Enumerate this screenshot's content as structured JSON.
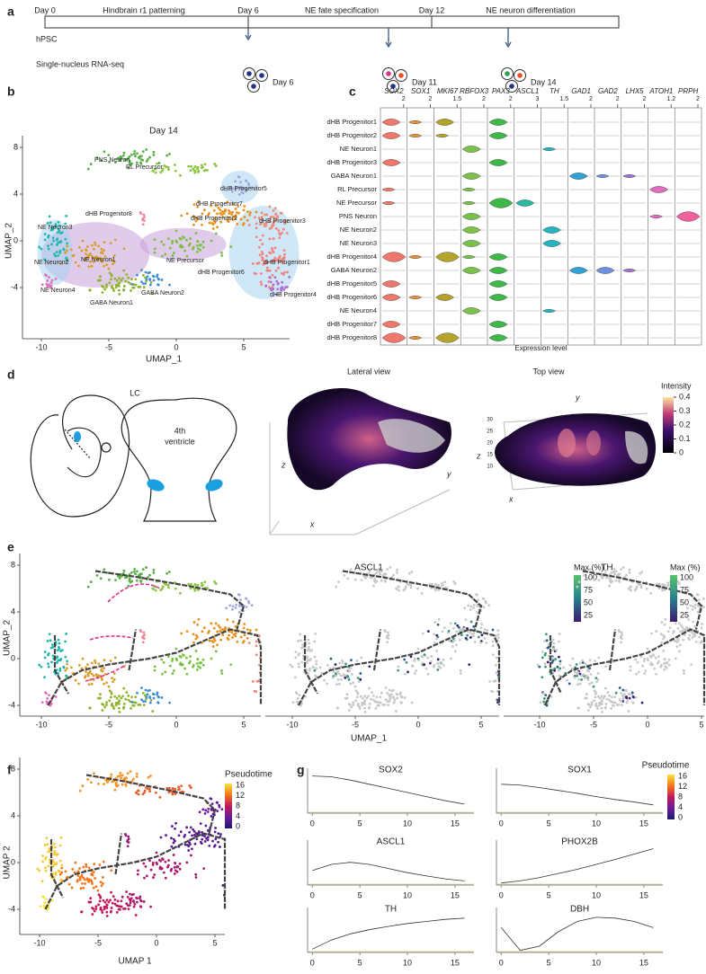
{
  "a": {
    "label": "a",
    "days": [
      "Day 0",
      "Day 6",
      "Day 12"
    ],
    "stages": [
      "Hindbrain r1 patterning",
      "NE fate specification",
      "NE neuron differentiation"
    ],
    "rows": [
      "hPSC",
      "Single-nucleus RNA-seq"
    ],
    "samples": [
      "Day 6",
      "Day 11",
      "Day 14"
    ]
  },
  "b": {
    "label": "b",
    "title": "Day 14",
    "xlabel": "UMAP_1",
    "ylabel": "UMAP_2",
    "xticks": [
      -10,
      -5,
      0,
      5
    ],
    "yticks": [
      8,
      4,
      0,
      -4
    ],
    "clusters": [
      "PNS Neuron",
      "RL Precursor",
      "dHB Progenitor5",
      "dHB Progenitor8",
      "dHB Progenitor7",
      "dHB Progenitor2",
      "dHB Progenitor3",
      "NE Neuron3",
      "NE Neuron1",
      "NE Neuron2",
      "NE Precursor",
      "dHB Progenitor1",
      "dHB Progenitor6",
      "NE Neuron4",
      "GABA Neuron2",
      "GABA Neuron1",
      "dHB Progenitor4"
    ]
  },
  "c": {
    "label": "c",
    "genes": [
      "SOX2",
      "SOX1",
      "MKI67",
      "RBFOX3",
      "PAX3",
      "ASCL1",
      "TH",
      "GAD1",
      "GAD2",
      "LHX5",
      "ATOH1",
      "PRPH"
    ],
    "max_labels": [
      "2",
      "2",
      "1.5",
      "2",
      "2",
      "3",
      "1.5",
      "2",
      "2",
      "2",
      "1.2",
      "2"
    ],
    "colors": [
      "#f0776c",
      "#e8913a",
      "#b5a42a",
      "#7cc24a",
      "#3fb84a",
      "#2bb7a0",
      "#25b3c0",
      "#2fa3d8",
      "#6f8fe0",
      "#a56fd8",
      "#e06bc0",
      "#f0609a"
    ],
    "cell_types": [
      "dHB Progenitor1",
      "dHB Progenitor2",
      "NE Neuron1",
      "dHB Progenitor3",
      "GABA Neuron1",
      "RL Precursor",
      "NE Precursor",
      "PNS Neuron",
      "NE Neuron2",
      "NE Neuron3",
      "dHB Progenitor4",
      "GABA Neuron2",
      "dHB Progenitor5",
      "dHB Progenitor6",
      "NE Neuron4",
      "dHB Progenitor7",
      "dHB Progenitor8"
    ],
    "expression": [
      [
        2,
        1,
        2,
        0,
        2,
        0,
        0,
        0,
        0,
        0,
        0,
        0
      ],
      [
        2,
        1,
        1,
        0,
        2,
        0,
        0,
        0,
        0,
        0,
        0,
        0
      ],
      [
        0,
        0,
        0,
        2,
        0,
        0,
        1,
        0,
        0,
        0,
        0,
        0
      ],
      [
        2,
        0,
        0,
        0,
        2,
        0,
        0,
        0,
        0,
        0,
        0,
        0
      ],
      [
        0,
        0,
        0,
        2,
        0,
        0,
        0,
        2,
        1,
        1,
        0,
        0
      ],
      [
        1,
        0,
        0,
        1,
        0,
        0,
        0,
        0,
        0,
        0,
        2,
        0
      ],
      [
        1,
        0,
        0,
        1,
        3,
        2,
        0,
        0,
        0,
        0,
        0,
        0
      ],
      [
        0,
        0,
        0,
        2,
        0,
        0,
        0,
        0,
        0,
        0,
        1,
        3
      ],
      [
        0,
        0,
        0,
        2,
        0,
        0,
        2,
        0,
        0,
        0,
        0,
        0
      ],
      [
        0,
        0,
        0,
        2,
        0,
        0,
        2,
        0,
        0,
        0,
        0,
        0
      ],
      [
        3,
        1,
        3,
        1,
        2,
        0,
        0,
        0,
        0,
        0,
        0,
        0
      ],
      [
        0,
        0,
        0,
        2,
        2,
        0,
        0,
        2,
        2,
        1,
        0,
        0
      ],
      [
        2,
        0,
        0,
        0,
        2,
        0,
        0,
        0,
        0,
        0,
        0,
        0
      ],
      [
        2,
        1,
        2,
        0,
        2,
        0,
        0,
        0,
        0,
        0,
        0,
        0
      ],
      [
        0,
        0,
        0,
        2,
        0,
        0,
        1,
        0,
        0,
        0,
        0,
        0
      ],
      [
        2,
        0,
        0,
        0,
        2,
        0,
        0,
        0,
        0,
        0,
        0,
        0
      ],
      [
        3,
        1,
        3,
        0,
        2,
        0,
        0,
        0,
        0,
        0,
        0,
        0
      ]
    ],
    "xlabel": "Expression level"
  },
  "d": {
    "label": "d",
    "sketch_title": "LC",
    "ventricle": [
      "4th",
      "ventricle"
    ],
    "lateral_title": "Lateral view",
    "top_title": "Top view",
    "lateral_axes": [
      "z",
      "x",
      "y"
    ],
    "top_axes": [
      "y",
      "z",
      "x"
    ],
    "top_zticks": [
      30,
      25,
      20,
      15,
      10
    ],
    "colorbar_title": "Intensity",
    "colorbar_ticks": [
      0.4,
      0.3,
      0.2,
      0.1,
      0
    ]
  },
  "e": {
    "label": "e",
    "xlabel": "UMAP_1",
    "ylabel": "UMAP_2",
    "xticks": [
      -10,
      -5,
      0,
      5
    ],
    "yticks": [
      8,
      4,
      0,
      -4
    ],
    "genes": [
      "ASCL1",
      "TH"
    ],
    "legend_title": "Max (%)",
    "legend_ticks": [
      100,
      75,
      50,
      25
    ]
  },
  "f": {
    "label": "f",
    "xlabel": "UMAP 1",
    "ylabel": "UMAP 2",
    "xticks": [
      -10,
      -5,
      0,
      5
    ],
    "yticks": [
      8,
      4,
      0,
      -4
    ],
    "legend_title": "Pseudotime",
    "legend_ticks": [
      16,
      12,
      8,
      4,
      0
    ]
  },
  "g": {
    "label": "g",
    "x": [
      0,
      2,
      4,
      6,
      8,
      10,
      12,
      14,
      16
    ],
    "xlim": [
      -0.5,
      17
    ],
    "xticks": [
      0,
      5,
      10,
      15
    ],
    "series": [
      {
        "name": "SOX2",
        "values": [
          0.9,
          0.88,
          0.8,
          0.7,
          0.6,
          0.5,
          0.4,
          0.3,
          0.22
        ]
      },
      {
        "name": "SOX1",
        "values": [
          0.7,
          0.68,
          0.62,
          0.55,
          0.48,
          0.4,
          0.33,
          0.27,
          0.2
        ]
      },
      {
        "name": "ASCL1",
        "values": [
          0.35,
          0.5,
          0.55,
          0.5,
          0.4,
          0.3,
          0.22,
          0.15,
          0.1
        ]
      },
      {
        "name": "PHOX2B",
        "values": [
          0.05,
          0.1,
          0.18,
          0.28,
          0.38,
          0.5,
          0.62,
          0.75,
          0.88
        ]
      },
      {
        "name": "TH",
        "values": [
          0.08,
          0.3,
          0.45,
          0.55,
          0.63,
          0.7,
          0.75,
          0.8,
          0.83
        ]
      },
      {
        "name": "DBH",
        "values": [
          0.6,
          0.05,
          0.15,
          0.5,
          0.75,
          0.85,
          0.83,
          0.75,
          0.6
        ]
      }
    ],
    "legend_title": "Pseudotime",
    "legend_ticks": [
      16,
      12,
      8,
      4,
      0
    ]
  }
}
